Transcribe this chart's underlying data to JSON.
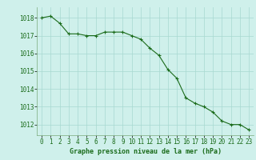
{
  "x": [
    0,
    1,
    2,
    3,
    4,
    5,
    6,
    7,
    8,
    9,
    10,
    11,
    12,
    13,
    14,
    15,
    16,
    17,
    18,
    19,
    20,
    21,
    22,
    23
  ],
  "y": [
    1018.0,
    1018.1,
    1017.7,
    1017.1,
    1017.1,
    1017.0,
    1017.0,
    1017.2,
    1017.2,
    1017.2,
    1017.0,
    1016.8,
    1016.3,
    1015.9,
    1015.1,
    1014.6,
    1013.5,
    1013.2,
    1013.0,
    1012.7,
    1012.2,
    1012.0,
    1012.0,
    1011.7
  ],
  "line_color": "#1a6b1a",
  "marker": "+",
  "marker_size": 3,
  "marker_lw": 0.8,
  "line_width": 0.8,
  "bg_color": "#cff0eb",
  "grid_color": "#a8d8d0",
  "ylabel_values": [
    1012,
    1013,
    1014,
    1015,
    1016,
    1017,
    1018
  ],
  "xlabel_label": "Graphe pression niveau de la mer (hPa)",
  "xlabel_color": "#1a6b1a",
  "ylim": [
    1011.4,
    1018.6
  ],
  "xlim": [
    -0.5,
    23.5
  ],
  "tick_fontsize": 5.5,
  "xlabel_fontsize": 6.0
}
